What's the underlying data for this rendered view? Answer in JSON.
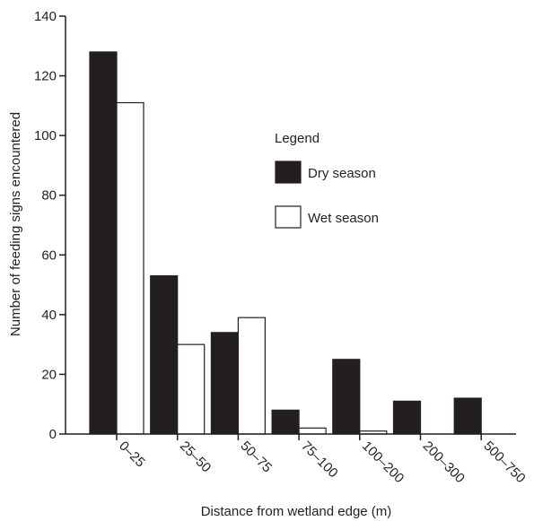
{
  "chart_data": {
    "type": "bar",
    "title": "",
    "xlabel": "Distance from wetland edge (m)",
    "ylabel": "Number of feeding signs encountered",
    "categories": [
      "0–25",
      "25–50",
      "50–75",
      "75–100",
      "100–200",
      "200–300",
      "500–750"
    ],
    "series": [
      {
        "name": "Dry season",
        "color": "#231f20",
        "values": [
          128,
          53,
          34,
          8,
          25,
          11,
          12
        ]
      },
      {
        "name": "Wet season",
        "color": "#ffffff",
        "values": [
          111,
          30,
          39,
          2,
          1,
          0,
          0
        ]
      }
    ],
    "ylim": [
      0,
      140
    ],
    "yticks": [
      0,
      20,
      40,
      60,
      80,
      100,
      120,
      140
    ],
    "grid": false,
    "legend": {
      "title": "Legend",
      "position": "center-right",
      "entries": [
        "Dry season",
        "Wet season"
      ]
    }
  }
}
